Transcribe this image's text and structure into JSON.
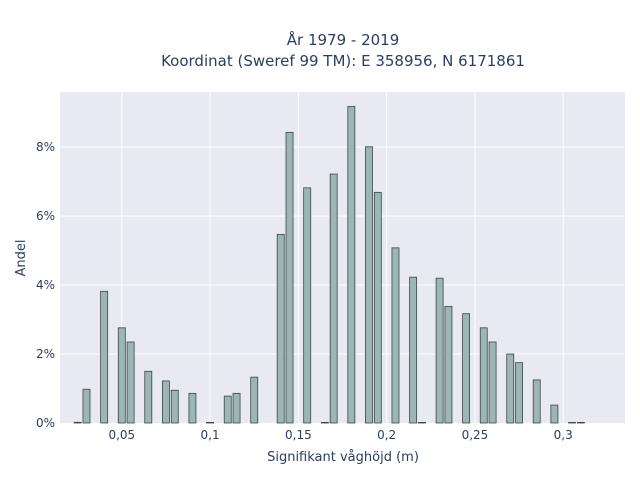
{
  "chart_data": {
    "type": "bar",
    "title": [
      "År 1979 - 2019",
      "Koordinat (Sweref 99 TM): E 358956, N 6171861"
    ],
    "xlabel": "Signifikant våghöjd (m)",
    "ylabel": "Andel",
    "xlim": [
      0.015,
      0.335
    ],
    "ylim": [
      0,
      9.6
    ],
    "y_unit": "%",
    "grid": true,
    "bin_width": 0.005,
    "x_ticks": [
      {
        "value": 0.05,
        "label": "0,05"
      },
      {
        "value": 0.1,
        "label": "0,1"
      },
      {
        "value": 0.15,
        "label": "0,15"
      },
      {
        "value": 0.2,
        "label": "0,2"
      },
      {
        "value": 0.25,
        "label": "0,25"
      },
      {
        "value": 0.3,
        "label": "0,3"
      }
    ],
    "y_ticks": [
      {
        "value": 0,
        "label": "0%"
      },
      {
        "value": 2,
        "label": "2%"
      },
      {
        "value": 4,
        "label": "4%"
      },
      {
        "value": 6,
        "label": "6%"
      },
      {
        "value": 8,
        "label": "8%"
      }
    ],
    "x": [
      0.025,
      0.03,
      0.04,
      0.05,
      0.055,
      0.065,
      0.075,
      0.08,
      0.09,
      0.1,
      0.11,
      0.115,
      0.125,
      0.14,
      0.145,
      0.155,
      0.165,
      0.17,
      0.18,
      0.19,
      0.195,
      0.205,
      0.215,
      0.22,
      0.23,
      0.235,
      0.245,
      0.255,
      0.26,
      0.27,
      0.275,
      0.285,
      0.295,
      0.305,
      0.31
    ],
    "values": [
      0.02,
      0.98,
      3.82,
      2.76,
      2.35,
      1.5,
      1.22,
      0.95,
      0.86,
      0.01,
      0.78,
      0.86,
      1.33,
      5.47,
      8.43,
      6.82,
      0.01,
      7.22,
      9.18,
      8.01,
      6.69,
      5.08,
      4.23,
      0.01,
      4.2,
      3.38,
      3.17,
      2.76,
      2.35,
      2.0,
      1.75,
      1.25,
      0.52,
      0.01,
      0.0
    ],
    "colors": {
      "bar": "#9cb6b6",
      "bar_edge": "#3a4747",
      "plot_bg": "#e9e9f2",
      "grid": "#ffffff",
      "text": "#2a3f5f"
    }
  }
}
